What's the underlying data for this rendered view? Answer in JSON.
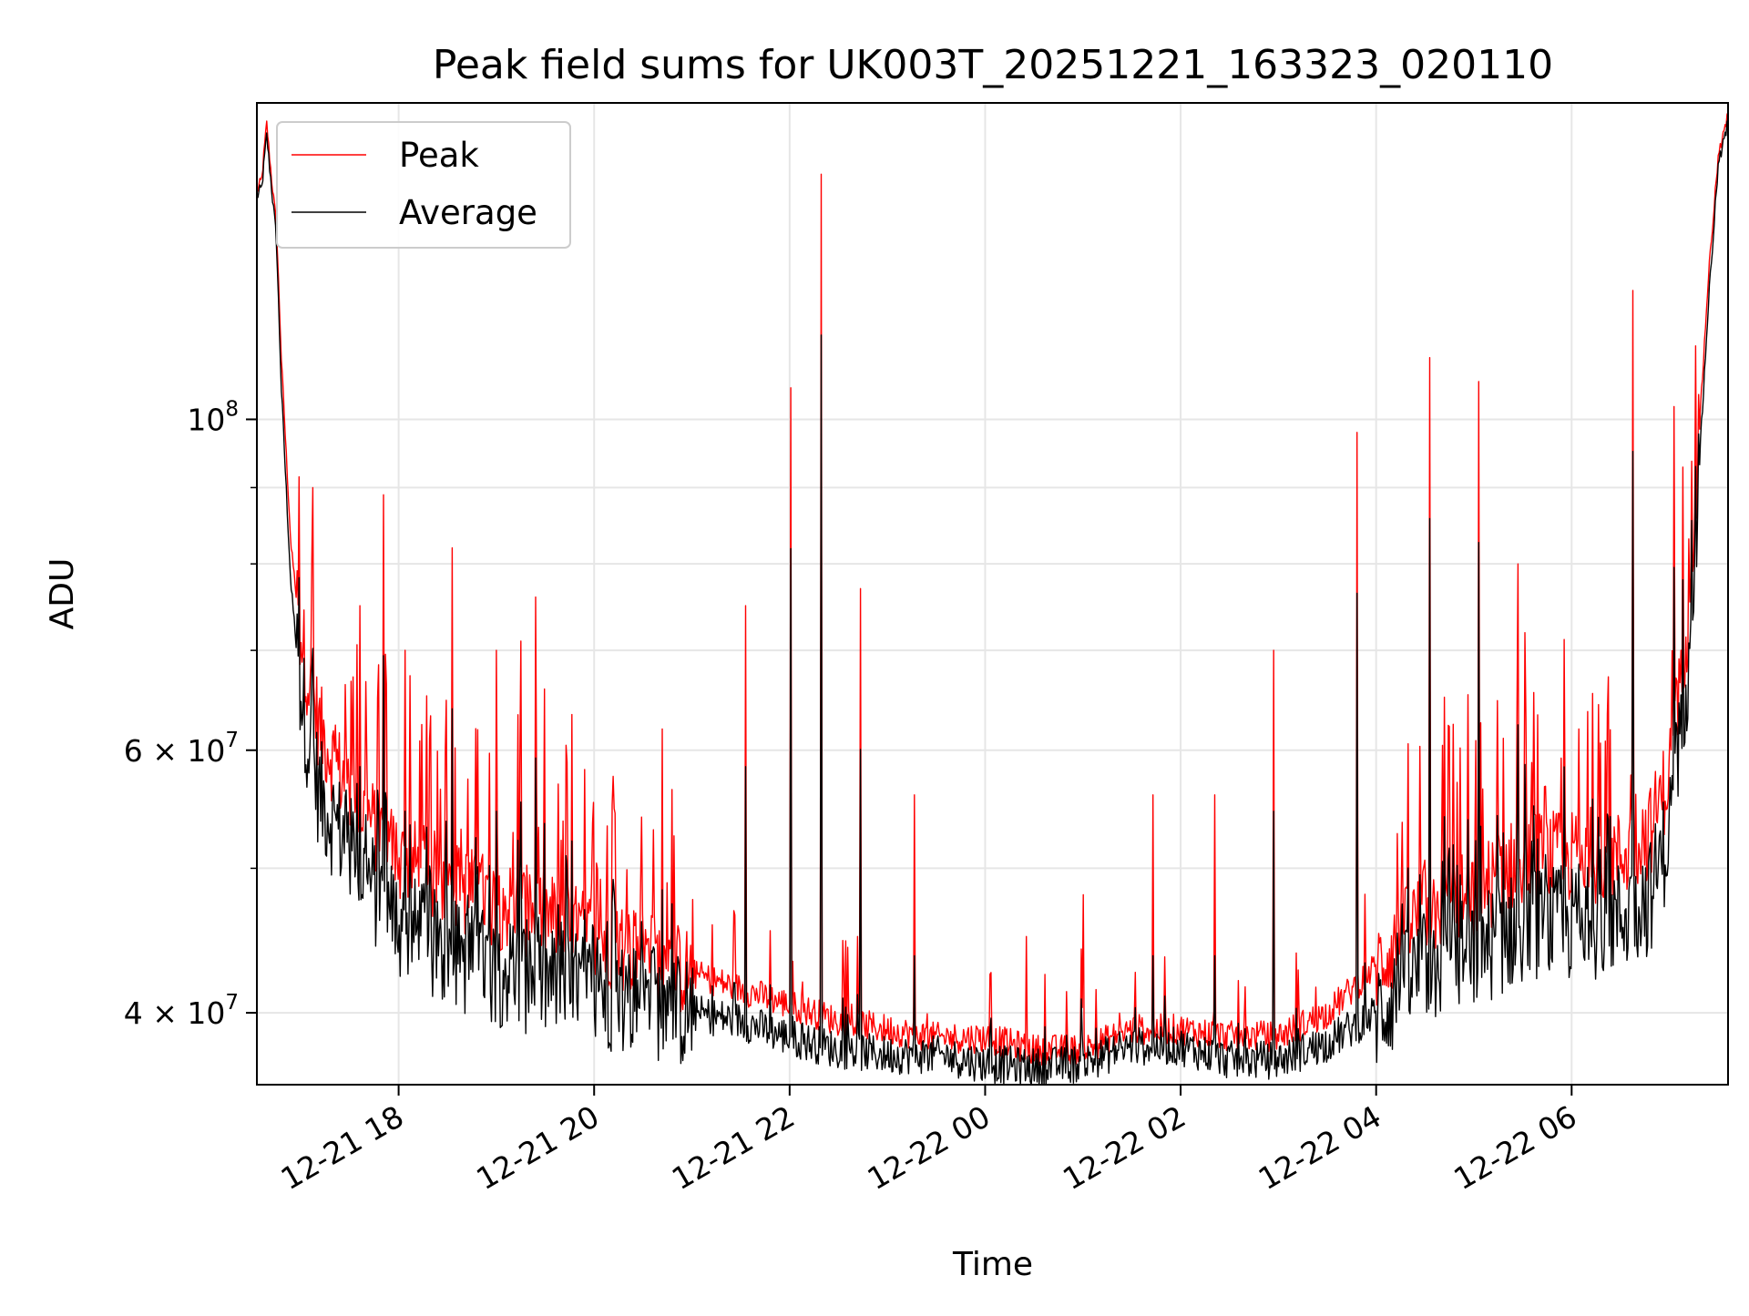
{
  "chart_data": {
    "type": "line",
    "title": "Peak field sums for UK003T_20251221_163323_020110",
    "xlabel": "Time",
    "ylabel": "ADU",
    "yscale": "log",
    "ylim": [
      35800000,
      163000000
    ],
    "xlim_hours_since_2025_12_21_00_00": [
      16.55,
      31.6
    ],
    "grid": true,
    "legend_location": "upper left",
    "x_ticks": [
      {
        "label": "12-21 18",
        "hour": 18
      },
      {
        "label": "12-21 20",
        "hour": 20
      },
      {
        "label": "12-21 22",
        "hour": 22
      },
      {
        "label": "12-22 00",
        "hour": 24
      },
      {
        "label": "12-22 02",
        "hour": 26
      },
      {
        "label": "12-22 04",
        "hour": 28
      },
      {
        "label": "12-22 06",
        "hour": 30
      }
    ],
    "y_major_ticks": [
      {
        "value": 100000000,
        "label_base": "10",
        "label_exp": "8"
      },
      {
        "value": 60000000,
        "label_base": "6 × 10",
        "label_exp": "7"
      },
      {
        "value": 40000000,
        "label_base": "4 × 10",
        "label_exp": "7"
      }
    ],
    "y_minor_grid": [
      50000000,
      70000000,
      80000000,
      90000000
    ],
    "series": [
      {
        "name": "Peak",
        "color": "#ff0000",
        "baseline_hours": [
          16.55,
          16.6,
          16.65,
          16.7,
          16.75,
          16.8,
          16.9,
          17.0,
          17.1,
          17.2,
          17.4,
          17.6,
          18.0,
          18.5,
          19.0,
          19.5,
          20.0,
          20.5,
          21.0,
          21.5,
          22.0,
          22.5,
          23.0,
          23.5,
          24.0,
          24.5,
          25.0,
          25.5,
          26.0,
          26.5,
          27.0,
          27.5,
          28.0,
          28.5,
          29.0,
          29.5,
          30.0,
          30.5,
          30.8,
          31.0,
          31.2,
          31.4,
          31.5,
          31.6
        ],
        "baseline_values": [
          142000000,
          145000000,
          158000000,
          145000000,
          135000000,
          110000000,
          82000000,
          72000000,
          66000000,
          62000000,
          58000000,
          55000000,
          51000000,
          49000000,
          47500000,
          46500000,
          45000000,
          44000000,
          42500000,
          41500000,
          40500000,
          39500000,
          39000000,
          38500000,
          38500000,
          37800000,
          37800000,
          39000000,
          39000000,
          38600000,
          38600000,
          40000000,
          43000000,
          47000000,
          48000000,
          51000000,
          51000000,
          51000000,
          53000000,
          58000000,
          75000000,
          125000000,
          150000000,
          160000000
        ],
        "spikes": [
          {
            "hour": 17.12,
            "value": 90000000
          },
          {
            "hour": 17.6,
            "value": 75000000
          },
          {
            "hour": 17.85,
            "value": 89000000
          },
          {
            "hour": 18.07,
            "value": 70000000
          },
          {
            "hour": 18.55,
            "value": 82000000
          },
          {
            "hour": 19.0,
            "value": 70000000
          },
          {
            "hour": 19.25,
            "value": 71000000
          },
          {
            "hour": 19.4,
            "value": 76000000
          },
          {
            "hour": 20.7,
            "value": 62000000
          },
          {
            "hour": 21.55,
            "value": 75000000
          },
          {
            "hour": 22.01,
            "value": 105000000
          },
          {
            "hour": 22.32,
            "value": 146000000
          },
          {
            "hour": 22.72,
            "value": 77000000
          },
          {
            "hour": 23.28,
            "value": 56000000
          },
          {
            "hour": 24.42,
            "value": 45000000
          },
          {
            "hour": 25.0,
            "value": 48000000
          },
          {
            "hour": 25.72,
            "value": 56000000
          },
          {
            "hour": 26.35,
            "value": 56000000
          },
          {
            "hour": 26.95,
            "value": 70000000
          },
          {
            "hour": 27.8,
            "value": 98000000
          },
          {
            "hour": 28.55,
            "value": 110000000
          },
          {
            "hour": 29.05,
            "value": 106000000
          },
          {
            "hour": 29.45,
            "value": 80000000
          },
          {
            "hour": 30.63,
            "value": 122000000
          },
          {
            "hour": 31.05,
            "value": 102000000
          }
        ]
      },
      {
        "name": "Average",
        "color": "#000000",
        "baseline_hours": [
          16.55,
          16.6,
          16.65,
          16.7,
          16.75,
          16.8,
          16.9,
          17.0,
          17.1,
          17.2,
          17.4,
          17.6,
          18.0,
          18.5,
          19.0,
          19.5,
          20.0,
          20.5,
          21.0,
          21.5,
          22.0,
          22.5,
          23.0,
          23.5,
          24.0,
          24.5,
          25.0,
          25.5,
          26.0,
          26.5,
          27.0,
          27.5,
          28.0,
          28.5,
          29.0,
          29.5,
          30.0,
          30.5,
          30.8,
          31.0,
          31.2,
          31.4,
          31.5,
          31.6
        ],
        "baseline_values": [
          141000000,
          143000000,
          155000000,
          143000000,
          132000000,
          105000000,
          77000000,
          66000000,
          60000000,
          56000000,
          53000000,
          50000000,
          46000000,
          44000000,
          43000000,
          42000000,
          41500000,
          41000000,
          40000000,
          39500000,
          38500000,
          37800000,
          37500000,
          37500000,
          37000000,
          36800000,
          37000000,
          38000000,
          38000000,
          37200000,
          37200000,
          38200000,
          40000000,
          43000000,
          44000000,
          46000000,
          46000000,
          46500000,
          48000000,
          53000000,
          70000000,
          120000000,
          148000000,
          158000000
        ]
      }
    ]
  }
}
